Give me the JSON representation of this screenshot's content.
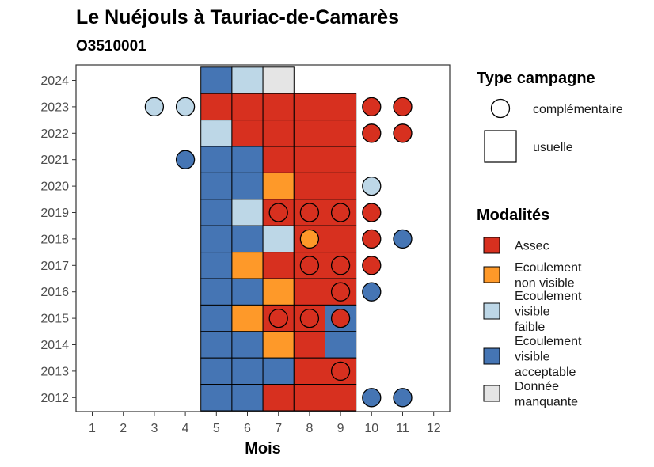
{
  "chart_data": {
    "type": "heatmap",
    "title": "Le Nuéjouls à Tauriac-de-Camarès",
    "subtitle": "O3510001",
    "xlabel": "Mois",
    "x_ticks": [
      1,
      2,
      3,
      4,
      5,
      6,
      7,
      8,
      9,
      10,
      11,
      12
    ],
    "y_ticks": [
      2024,
      2023,
      2022,
      2021,
      2020,
      2019,
      2018,
      2017,
      2016,
      2015,
      2014,
      2013,
      2012
    ],
    "modalities": [
      {
        "key": "assec",
        "label_lines": [
          "Assec"
        ],
        "color": "#d7301f"
      },
      {
        "key": "nonvisible",
        "label_lines": [
          "Ecoulement",
          "non visible"
        ],
        "color": "#fe9929"
      },
      {
        "key": "faible",
        "label_lines": [
          "Ecoulement",
          "visible",
          "faible"
        ],
        "color": "#bdd7e7"
      },
      {
        "key": "acceptable",
        "label_lines": [
          "Ecoulement",
          "visible",
          "acceptable"
        ],
        "color": "#4575b4"
      },
      {
        "key": "manquante",
        "label_lines": [
          "Donnée",
          "manquante"
        ],
        "color": "#e5e5e5"
      }
    ],
    "campaign_types": [
      {
        "key": "complementaire",
        "label": "complémentaire",
        "shape": "circle"
      },
      {
        "key": "usuelle",
        "label": "usuelle",
        "shape": "square"
      }
    ],
    "legend_titles": {
      "campaign": "Type campagne",
      "modality": "Modalités"
    },
    "tiles": [
      {
        "year": 2024,
        "month": 5,
        "value": "acceptable"
      },
      {
        "year": 2024,
        "month": 6,
        "value": "faible"
      },
      {
        "year": 2024,
        "month": 7,
        "value": "manquante"
      },
      {
        "year": 2023,
        "month": 5,
        "value": "assec"
      },
      {
        "year": 2023,
        "month": 6,
        "value": "assec"
      },
      {
        "year": 2023,
        "month": 7,
        "value": "assec"
      },
      {
        "year": 2023,
        "month": 8,
        "value": "assec"
      },
      {
        "year": 2023,
        "month": 9,
        "value": "assec"
      },
      {
        "year": 2022,
        "month": 5,
        "value": "faible"
      },
      {
        "year": 2022,
        "month": 6,
        "value": "assec"
      },
      {
        "year": 2022,
        "month": 7,
        "value": "assec"
      },
      {
        "year": 2022,
        "month": 8,
        "value": "assec"
      },
      {
        "year": 2022,
        "month": 9,
        "value": "assec"
      },
      {
        "year": 2021,
        "month": 5,
        "value": "acceptable"
      },
      {
        "year": 2021,
        "month": 6,
        "value": "acceptable"
      },
      {
        "year": 2021,
        "month": 7,
        "value": "assec"
      },
      {
        "year": 2021,
        "month": 8,
        "value": "assec"
      },
      {
        "year": 2021,
        "month": 9,
        "value": "assec"
      },
      {
        "year": 2020,
        "month": 5,
        "value": "acceptable"
      },
      {
        "year": 2020,
        "month": 6,
        "value": "acceptable"
      },
      {
        "year": 2020,
        "month": 7,
        "value": "nonvisible"
      },
      {
        "year": 2020,
        "month": 8,
        "value": "assec"
      },
      {
        "year": 2020,
        "month": 9,
        "value": "assec"
      },
      {
        "year": 2019,
        "month": 5,
        "value": "acceptable"
      },
      {
        "year": 2019,
        "month": 6,
        "value": "faible"
      },
      {
        "year": 2019,
        "month": 7,
        "value": "assec"
      },
      {
        "year": 2019,
        "month": 8,
        "value": "assec"
      },
      {
        "year": 2019,
        "month": 9,
        "value": "assec"
      },
      {
        "year": 2018,
        "month": 5,
        "value": "acceptable"
      },
      {
        "year": 2018,
        "month": 6,
        "value": "acceptable"
      },
      {
        "year": 2018,
        "month": 7,
        "value": "faible"
      },
      {
        "year": 2018,
        "month": 8,
        "value": "assec"
      },
      {
        "year": 2018,
        "month": 9,
        "value": "assec"
      },
      {
        "year": 2017,
        "month": 5,
        "value": "acceptable"
      },
      {
        "year": 2017,
        "month": 6,
        "value": "nonvisible"
      },
      {
        "year": 2017,
        "month": 7,
        "value": "assec"
      },
      {
        "year": 2017,
        "month": 8,
        "value": "assec"
      },
      {
        "year": 2017,
        "month": 9,
        "value": "assec"
      },
      {
        "year": 2016,
        "month": 5,
        "value": "acceptable"
      },
      {
        "year": 2016,
        "month": 6,
        "value": "acceptable"
      },
      {
        "year": 2016,
        "month": 7,
        "value": "nonvisible"
      },
      {
        "year": 2016,
        "month": 8,
        "value": "assec"
      },
      {
        "year": 2016,
        "month": 9,
        "value": "assec"
      },
      {
        "year": 2015,
        "month": 5,
        "value": "acceptable"
      },
      {
        "year": 2015,
        "month": 6,
        "value": "nonvisible"
      },
      {
        "year": 2015,
        "month": 7,
        "value": "assec"
      },
      {
        "year": 2015,
        "month": 8,
        "value": "assec"
      },
      {
        "year": 2015,
        "month": 9,
        "value": "acceptable"
      },
      {
        "year": 2014,
        "month": 5,
        "value": "acceptable"
      },
      {
        "year": 2014,
        "month": 6,
        "value": "acceptable"
      },
      {
        "year": 2014,
        "month": 7,
        "value": "nonvisible"
      },
      {
        "year": 2014,
        "month": 8,
        "value": "assec"
      },
      {
        "year": 2014,
        "month": 9,
        "value": "acceptable"
      },
      {
        "year": 2013,
        "month": 5,
        "value": "acceptable"
      },
      {
        "year": 2013,
        "month": 6,
        "value": "acceptable"
      },
      {
        "year": 2013,
        "month": 7,
        "value": "acceptable"
      },
      {
        "year": 2013,
        "month": 8,
        "value": "assec"
      },
      {
        "year": 2013,
        "month": 9,
        "value": "assec"
      },
      {
        "year": 2012,
        "month": 5,
        "value": "acceptable"
      },
      {
        "year": 2012,
        "month": 6,
        "value": "acceptable"
      },
      {
        "year": 2012,
        "month": 7,
        "value": "assec"
      },
      {
        "year": 2012,
        "month": 8,
        "value": "assec"
      },
      {
        "year": 2012,
        "month": 9,
        "value": "assec"
      }
    ],
    "points": [
      {
        "year": 2023,
        "month": 3,
        "value": "faible"
      },
      {
        "year": 2023,
        "month": 4,
        "value": "faible"
      },
      {
        "year": 2023,
        "month": 10,
        "value": "assec"
      },
      {
        "year": 2023,
        "month": 11,
        "value": "assec"
      },
      {
        "year": 2022,
        "month": 10,
        "value": "assec"
      },
      {
        "year": 2022,
        "month": 11,
        "value": "assec"
      },
      {
        "year": 2021,
        "month": 4,
        "value": "acceptable"
      },
      {
        "year": 2020,
        "month": 10,
        "value": "faible"
      },
      {
        "year": 2019,
        "month": 7,
        "value": "assec"
      },
      {
        "year": 2019,
        "month": 8,
        "value": "assec"
      },
      {
        "year": 2019,
        "month": 9,
        "value": "assec"
      },
      {
        "year": 2019,
        "month": 10,
        "value": "assec"
      },
      {
        "year": 2018,
        "month": 8,
        "value": "nonvisible"
      },
      {
        "year": 2018,
        "month": 10,
        "value": "assec"
      },
      {
        "year": 2018,
        "month": 11,
        "value": "acceptable"
      },
      {
        "year": 2017,
        "month": 8,
        "value": "assec"
      },
      {
        "year": 2017,
        "month": 9,
        "value": "assec"
      },
      {
        "year": 2017,
        "month": 10,
        "value": "assec"
      },
      {
        "year": 2016,
        "month": 9,
        "value": "assec"
      },
      {
        "year": 2016,
        "month": 10,
        "value": "acceptable"
      },
      {
        "year": 2015,
        "month": 7,
        "value": "assec"
      },
      {
        "year": 2015,
        "month": 8,
        "value": "assec"
      },
      {
        "year": 2015,
        "month": 9,
        "value": "assec"
      },
      {
        "year": 2013,
        "month": 9,
        "value": "assec"
      },
      {
        "year": 2012,
        "month": 10,
        "value": "acceptable"
      },
      {
        "year": 2012,
        "month": 11,
        "value": "acceptable"
      }
    ]
  }
}
